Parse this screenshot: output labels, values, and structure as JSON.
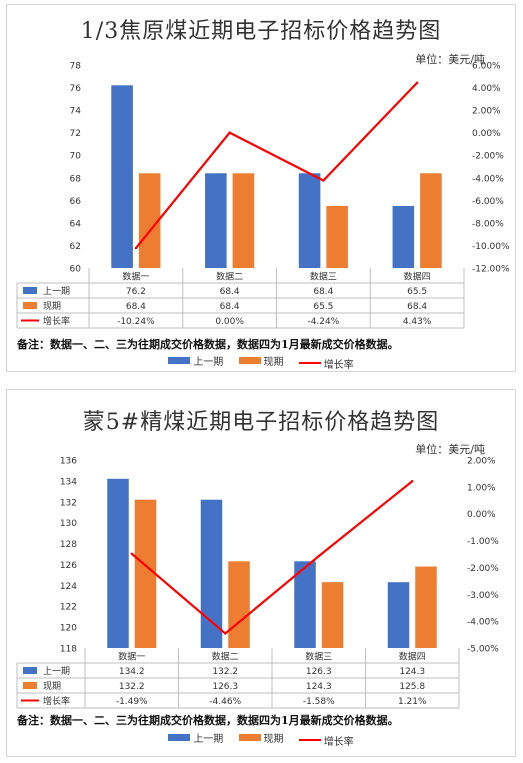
{
  "colors": {
    "prev": "#4472c4",
    "cur": "#ed7d31",
    "rate": "#ff0000"
  },
  "chart_data": [
    {
      "type": "bar",
      "title": "1/3焦原煤近期电子招标价格趋势图",
      "unit": "单位：美元/吨",
      "categories": [
        "数据一",
        "数据二",
        "数据三",
        "数据四"
      ],
      "series": [
        {
          "name": "上一期",
          "values": [
            76.2,
            68.4,
            68.4,
            65.5
          ],
          "labels": [
            "76.2",
            "68.4",
            "68.4",
            "65.5"
          ]
        },
        {
          "name": "现期",
          "values": [
            68.4,
            68.4,
            65.5,
            68.4
          ],
          "labels": [
            "68.4",
            "68.4",
            "65.5",
            "68.4"
          ]
        }
      ],
      "line_series": {
        "name": "增长率",
        "values": [
          -10.24,
          0.0,
          -4.24,
          4.43
        ],
        "labels": [
          "-10.24%",
          "0.00%",
          "-4.24%",
          "4.43%"
        ]
      },
      "ylim": [
        60,
        78
      ],
      "yticks": [
        "60",
        "62",
        "64",
        "66",
        "68",
        "70",
        "72",
        "74",
        "76",
        "78"
      ],
      "y2lim": [
        -12,
        6
      ],
      "y2ticks": [
        "-12.00%",
        "-10.00%",
        "-8.00%",
        "-6.00%",
        "-4.00%",
        "-2.00%",
        "0.00%",
        "2.00%",
        "4.00%",
        "6.00%"
      ],
      "note": "备注：数据一、二、三为往期成交价格数据，数据四为1月最新成交价格数据。"
    },
    {
      "type": "bar",
      "title": "蒙5#精煤近期电子招标价格趋势图",
      "unit": "单位：美元/吨",
      "categories": [
        "数据一",
        "数据二",
        "数据三",
        "数据四"
      ],
      "series": [
        {
          "name": "上一期",
          "values": [
            134.2,
            132.2,
            126.3,
            124.3
          ],
          "labels": [
            "134.2",
            "132.2",
            "126.3",
            "124.3"
          ]
        },
        {
          "name": "现期",
          "values": [
            132.2,
            126.3,
            124.3,
            125.8
          ],
          "labels": [
            "132.2",
            "126.3",
            "124.3",
            "125.8"
          ]
        }
      ],
      "line_series": {
        "name": "增长率",
        "values": [
          -1.49,
          -4.46,
          -1.58,
          1.21
        ],
        "labels": [
          "-1.49%",
          "-4.46%",
          "-1.58%",
          "1.21%"
        ]
      },
      "ylim": [
        118,
        136
      ],
      "yticks": [
        "118",
        "120",
        "122",
        "124",
        "126",
        "128",
        "130",
        "132",
        "134",
        "136"
      ],
      "y2lim": [
        -5,
        2
      ],
      "y2ticks": [
        "-5.00%",
        "-4.00%",
        "-3.00%",
        "-2.00%",
        "-1.00%",
        "0.00%",
        "1.00%",
        "2.00%"
      ],
      "note": "备注：数据一、二、三为往期成交价格数据，数据四为1月最新成交价格数据。"
    }
  ]
}
